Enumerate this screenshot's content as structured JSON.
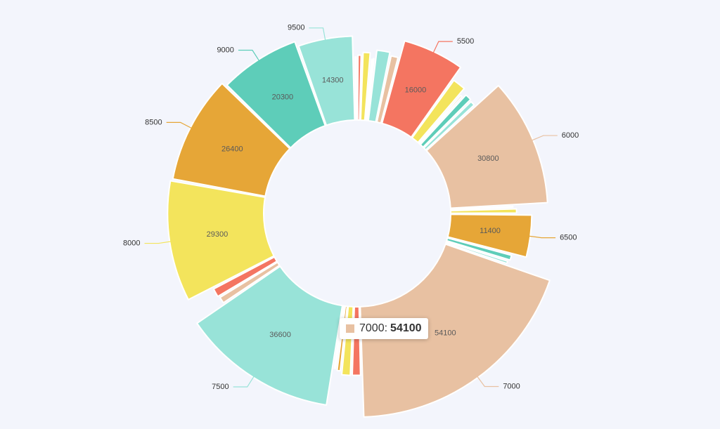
{
  "chart_data": {
    "type": "pie",
    "variant": "donut",
    "start_angle_deg": -1.2,
    "colors": {
      "peach": "#e8c1a2",
      "red": "#f47561",
      "yellow": "#f3e45c",
      "orange": "#e6a637",
      "teal": "#5ecdb9",
      "mint": "#98e3d8"
    },
    "slices": [
      {
        "value": 900,
        "color": "peach"
      },
      {
        "value": 1400,
        "color": "red"
      },
      {
        "value": 2500,
        "color": "yellow"
      },
      {
        "value": 500,
        "color": "orange"
      },
      {
        "value": 700,
        "color": "teal"
      },
      {
        "value": 4100,
        "color": "mint"
      },
      {
        "value": 2500,
        "color": "peach"
      },
      {
        "value": 16000,
        "color": "red",
        "label": "16000",
        "leader": "5500"
      },
      {
        "value": 4100,
        "color": "yellow"
      },
      {
        "value": 1000,
        "color": "orange"
      },
      {
        "value": 2300,
        "color": "teal"
      },
      {
        "value": 1800,
        "color": "mint"
      },
      {
        "value": 30800,
        "color": "peach",
        "label": "30800",
        "leader": "6000"
      },
      {
        "value": 700,
        "color": "red"
      },
      {
        "value": 1700,
        "color": "yellow"
      },
      {
        "value": 11400,
        "color": "orange",
        "label": "11400",
        "leader": "6500"
      },
      {
        "value": 1900,
        "color": "teal"
      },
      {
        "value": 1200,
        "color": "mint"
      },
      {
        "value": 54100,
        "color": "peach",
        "label": "54100",
        "leader": "7000"
      },
      {
        "value": 2800,
        "color": "red"
      },
      {
        "value": 2900,
        "color": "yellow"
      },
      {
        "value": 1400,
        "color": "orange"
      },
      {
        "value": 900,
        "color": "teal"
      },
      {
        "value": 36600,
        "color": "mint",
        "label": "36600",
        "leader": "7500"
      },
      {
        "value": 2300,
        "color": "peach"
      },
      {
        "value": 2900,
        "color": "red"
      },
      {
        "value": 29300,
        "color": "yellow",
        "label": "29300",
        "leader": "8000"
      },
      {
        "value": 26400,
        "color": "orange",
        "label": "26400",
        "leader": "8500"
      },
      {
        "value": 20300,
        "color": "teal",
        "label": "20300",
        "leader": "9000"
      },
      {
        "value": 14300,
        "color": "mint",
        "label": "14300",
        "leader": "9500"
      }
    ]
  },
  "tooltip": {
    "name": "7000",
    "separator": ":",
    "value": "54100"
  }
}
